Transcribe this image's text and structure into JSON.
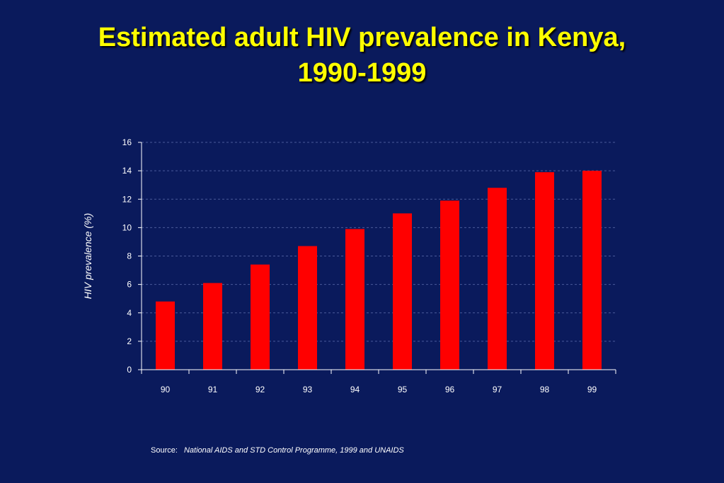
{
  "slide": {
    "title_line1": "Estimated adult HIV prevalence in Kenya,",
    "title_line2": "1990-1999",
    "source_label": "Source:",
    "source_text": "National AIDS and STD Control Programme, 1999 and UNAIDS"
  },
  "colors": {
    "background": "#0a1a5c",
    "title": "#ffff00",
    "bar": "#ff0000",
    "text": "#ffffff"
  },
  "chart_data": {
    "type": "bar",
    "title": "",
    "xlabel": "",
    "ylabel": "HIV prevalence (%)",
    "categories": [
      "90",
      "91",
      "92",
      "93",
      "94",
      "95",
      "96",
      "97",
      "98",
      "99"
    ],
    "values": [
      4.8,
      6.1,
      7.4,
      8.7,
      9.9,
      11.0,
      11.9,
      12.8,
      13.9,
      14.0
    ],
    "ylim": [
      0,
      16
    ],
    "yticks": [
      0,
      2,
      4,
      6,
      8,
      10,
      12,
      14,
      16
    ],
    "grid": true,
    "legend": "none"
  }
}
